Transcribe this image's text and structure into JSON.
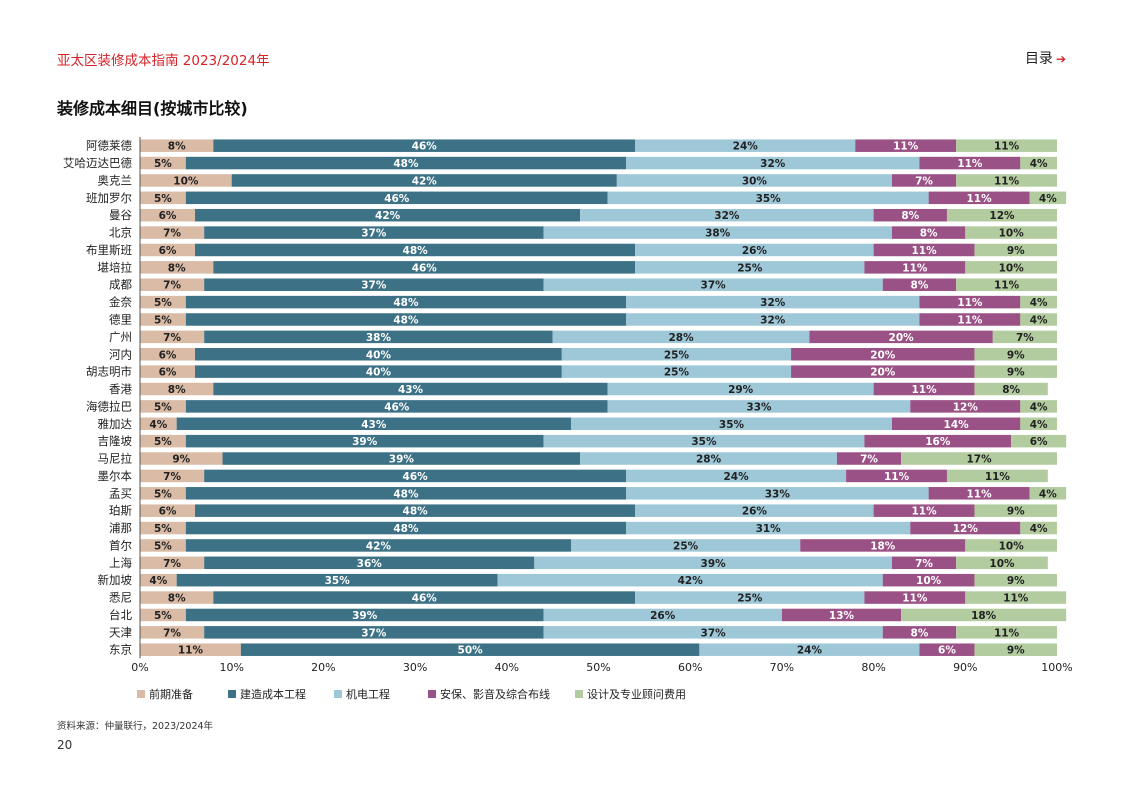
{
  "header": {
    "report_title": "亚太区装修成本指南 2023/2024年",
    "toc_label": "目录",
    "toc_icon": "arrow-right-icon"
  },
  "footer": {
    "source": "资料来源：仲量联行，2023/2024年",
    "page_number": "20"
  },
  "chart_data": {
    "type": "bar",
    "orientation": "horizontal",
    "stacked": true,
    "percent_stacked": true,
    "title": "装修成本细目(按城市比较)",
    "xlim": [
      0,
      100
    ],
    "x_ticks": [
      "0%",
      "10%",
      "20%",
      "30%",
      "40%",
      "50%",
      "60%",
      "70%",
      "80%",
      "90%",
      "100%"
    ],
    "legend_position": "bottom-left",
    "categories": [
      "阿德莱德",
      "艾哈迈达巴德",
      "奥克兰",
      "班加罗尔",
      "曼谷",
      "北京",
      "布里斯班",
      "堪培拉",
      "成都",
      "金奈",
      "德里",
      "广州",
      "河内",
      "胡志明市",
      "香港",
      "海德拉巴",
      "雅加达",
      "吉隆坡",
      "马尼拉",
      "墨尔本",
      "孟买",
      "珀斯",
      "浦那",
      "首尔",
      "上海",
      "新加坡",
      "悉尼",
      "台北",
      "天津",
      "东京"
    ],
    "series": [
      {
        "name": "前期准备",
        "color": "#d9bba6",
        "label_color": "#222222",
        "values": [
          8,
          5,
          10,
          5,
          6,
          7,
          6,
          8,
          7,
          5,
          5,
          7,
          6,
          6,
          8,
          5,
          4,
          5,
          9,
          7,
          5,
          6,
          5,
          5,
          7,
          4,
          8,
          5,
          7,
          11
        ]
      },
      {
        "name": "建造成本工程",
        "color": "#3c7186",
        "label_color": "#ffffff",
        "values": [
          46,
          48,
          42,
          46,
          42,
          37,
          48,
          46,
          37,
          48,
          48,
          38,
          40,
          40,
          43,
          46,
          43,
          39,
          39,
          46,
          48,
          48,
          48,
          42,
          36,
          35,
          46,
          39,
          37,
          50
        ]
      },
      {
        "name": "机电工程",
        "color": "#9ec8d8",
        "label_color": "#222222",
        "values": [
          24,
          32,
          30,
          35,
          32,
          38,
          26,
          25,
          37,
          32,
          32,
          28,
          25,
          25,
          29,
          33,
          35,
          35,
          28,
          24,
          33,
          26,
          31,
          25,
          39,
          42,
          25,
          26,
          37,
          24
        ]
      },
      {
        "name": "安保、影音及综合布线",
        "color": "#9a5185",
        "label_color": "#ffffff",
        "values": [
          11,
          11,
          7,
          11,
          8,
          8,
          11,
          11,
          8,
          11,
          11,
          20,
          20,
          20,
          11,
          12,
          14,
          16,
          7,
          11,
          11,
          11,
          12,
          18,
          7,
          10,
          11,
          13,
          8,
          6
        ]
      },
      {
        "name": "设计及专业顾问费用",
        "color": "#b2cc9f",
        "label_color": "#222222",
        "values": [
          11,
          4,
          11,
          4,
          12,
          10,
          9,
          10,
          11,
          4,
          4,
          7,
          9,
          9,
          8,
          4,
          4,
          6,
          17,
          11,
          4,
          9,
          4,
          10,
          10,
          9,
          11,
          18,
          11,
          9
        ]
      }
    ],
    "grid": false
  }
}
